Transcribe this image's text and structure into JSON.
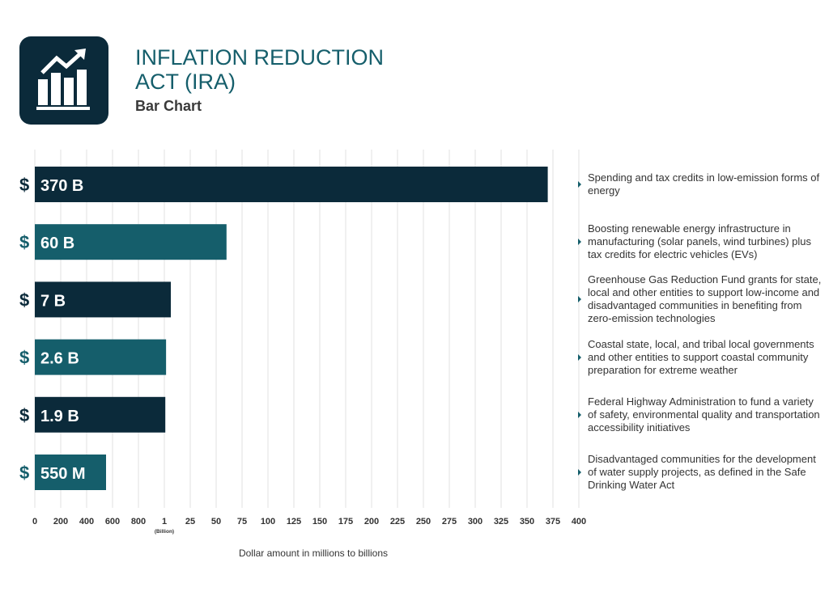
{
  "header": {
    "title": "INFLATION REDUCTION ACT (IRA)",
    "subtitle": "Bar Chart"
  },
  "chart_data": {
    "type": "bar",
    "orientation": "horizontal",
    "x_label": "Dollar amount in millions to billions",
    "xtick_note": "(Billion)",
    "value_prefix": "$",
    "values": [
      370000,
      60000,
      7000,
      2600,
      1900,
      550
    ],
    "value_labels": [
      "370 B",
      "60 B",
      "7 B",
      "2.6 B",
      "1.9 B",
      "550 M"
    ],
    "colors": [
      "#0b2a3a",
      "#155e6b",
      "#0b2a3a",
      "#155e6b",
      "#0b2a3a",
      "#155e6b"
    ],
    "descriptions": [
      "Spending and tax credits in low-emission forms of energy",
      "Boosting renewable energy infrastructure in manufacturing (solar panels, wind turbines) plus tax credits for electric vehicles (EVs)",
      "Greenhouse Gas Reduction Fund grants for state, local and other entities to support low-income and disadvantaged communities in benefiting from zero-emission technologies",
      "Coastal state, local, and tribal local governments and other entities to support coastal community preparation for extreme weather",
      "Federal Highway Administration to fund a variety of safety, environmental quality and transportation accessibility initiatives",
      "Disadvantaged communities for the development of water supply projects, as defined in the Safe Drinking Water Act"
    ],
    "xlim": [
      0,
      400000
    ],
    "xticks": [
      0,
      200,
      400,
      600,
      800,
      {
        "value": 1000,
        "label": "1"
      },
      {
        "value": 25000,
        "label": "25"
      },
      {
        "value": 50000,
        "label": "50"
      },
      {
        "value": 75000,
        "label": "75"
      },
      {
        "value": 100000,
        "label": "100"
      },
      {
        "value": 125000,
        "label": "125"
      },
      {
        "value": 150000,
        "label": "150"
      },
      {
        "value": 175000,
        "label": "175"
      },
      {
        "value": 200000,
        "label": "200"
      },
      {
        "value": 225000,
        "label": "225"
      },
      {
        "value": 250000,
        "label": "250"
      },
      {
        "value": 275000,
        "label": "275"
      },
      {
        "value": 300000,
        "label": "300"
      },
      {
        "value": 325000,
        "label": "325"
      },
      {
        "value": 350000,
        "label": "350"
      },
      {
        "value": 375000,
        "label": "375"
      },
      {
        "value": 400000,
        "label": "400"
      }
    ],
    "grid": true
  }
}
